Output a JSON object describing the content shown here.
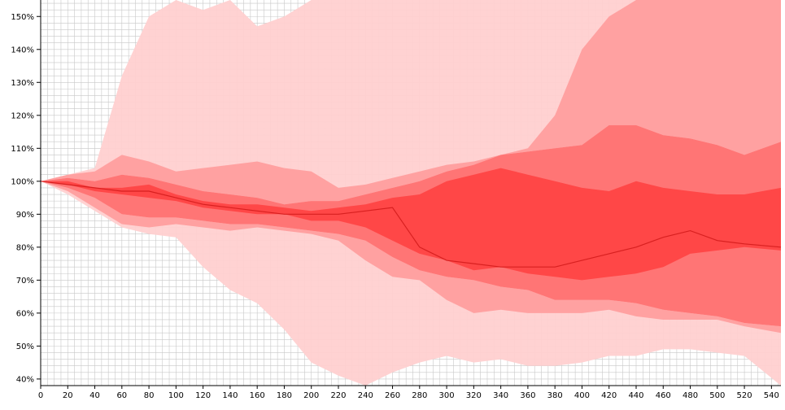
{
  "chart_data": {
    "type": "area",
    "title": "",
    "xlabel": "",
    "ylabel": "",
    "xlim": [
      0,
      547
    ],
    "ylim": [
      38,
      155
    ],
    "x_ticks": [
      0,
      20,
      40,
      60,
      80,
      100,
      120,
      140,
      160,
      180,
      200,
      220,
      240,
      260,
      280,
      300,
      320,
      340,
      360,
      380,
      400,
      420,
      440,
      460,
      480,
      500,
      520,
      540
    ],
    "y_ticks": [
      40,
      50,
      60,
      70,
      80,
      90,
      100,
      110,
      120,
      130,
      140,
      150
    ],
    "y_tick_suffix": "%",
    "grid": true,
    "grid_minor_x_step": 5,
    "grid_minor_y_step": 2,
    "colors": {
      "band_outer": "#ffd0d0",
      "band_mid": "#ff9e9e",
      "band_inner": "#ff7070",
      "band_core": "#ff4444",
      "median_line": "#d82020",
      "grid": "#c8c8c8",
      "axis": "#000000"
    },
    "x": [
      0,
      20,
      40,
      60,
      80,
      100,
      120,
      140,
      160,
      180,
      200,
      220,
      240,
      260,
      280,
      300,
      320,
      340,
      360,
      380,
      400,
      420,
      440,
      460,
      480,
      500,
      520,
      547
    ],
    "bands": [
      {
        "level": "outer",
        "upper": [
          100,
          102,
          104,
          132,
          150,
          160,
          152,
          155,
          147,
          150,
          160,
          160,
          160,
          160,
          160,
          160,
          160,
          160,
          160,
          160,
          160,
          160,
          160,
          160,
          160,
          160,
          160,
          160
        ],
        "lower": [
          100,
          96,
          91,
          86,
          84,
          83,
          74,
          67,
          63,
          55,
          45,
          41,
          38,
          42,
          45,
          47,
          45,
          46,
          44,
          44,
          45,
          47,
          47,
          49,
          49,
          48,
          47,
          36
        ]
      },
      {
        "level": "mid",
        "upper": [
          100,
          102,
          103,
          108,
          106,
          103,
          104,
          105,
          106,
          104,
          103,
          98,
          99,
          101,
          103,
          105,
          106,
          108,
          110,
          120,
          140,
          150,
          155,
          158,
          158,
          158,
          158,
          158
        ]
      },
      {
        "level": "mid",
        "lower": [
          100,
          97,
          92,
          87,
          86,
          87,
          86,
          85,
          86,
          85,
          84,
          82,
          76,
          71,
          70,
          64,
          60,
          61,
          60,
          60,
          60,
          61,
          59,
          58,
          58,
          58,
          56,
          54
        ]
      },
      {
        "level": "inner",
        "upper": [
          100,
          101,
          100,
          102,
          101,
          99,
          97,
          96,
          95,
          93,
          94,
          94,
          96,
          98,
          100,
          103,
          105,
          108,
          109,
          110,
          111,
          117,
          117,
          114,
          113,
          111,
          108,
          112
        ],
        "lower": [
          100,
          98,
          95,
          90,
          89,
          89,
          88,
          87,
          87,
          86,
          85,
          84,
          82,
          77,
          73,
          71,
          70,
          68,
          67,
          64,
          64,
          64,
          63,
          61,
          60,
          59,
          57,
          56
        ]
      },
      {
        "level": "core",
        "upper": [
          100,
          100,
          98,
          98,
          99,
          96,
          94,
          93,
          93,
          92,
          91,
          92,
          93,
          95,
          96,
          100,
          102,
          104,
          102,
          100,
          98,
          97,
          100,
          98,
          97,
          96,
          96,
          98
        ],
        "lower": [
          100,
          99,
          97,
          96,
          95,
          94,
          92,
          91,
          90,
          90,
          88,
          88,
          86,
          82,
          78,
          76,
          73,
          74,
          72,
          71,
          70,
          71,
          72,
          74,
          78,
          79,
          80,
          79
        ]
      }
    ],
    "series": [
      {
        "values": [
          100,
          99,
          98,
          97,
          97,
          95,
          93,
          92,
          91,
          90,
          90,
          90,
          91,
          92,
          80,
          76,
          75,
          74,
          74,
          74,
          76,
          78,
          80,
          83,
          85,
          82,
          81,
          80
        ]
      }
    ]
  }
}
